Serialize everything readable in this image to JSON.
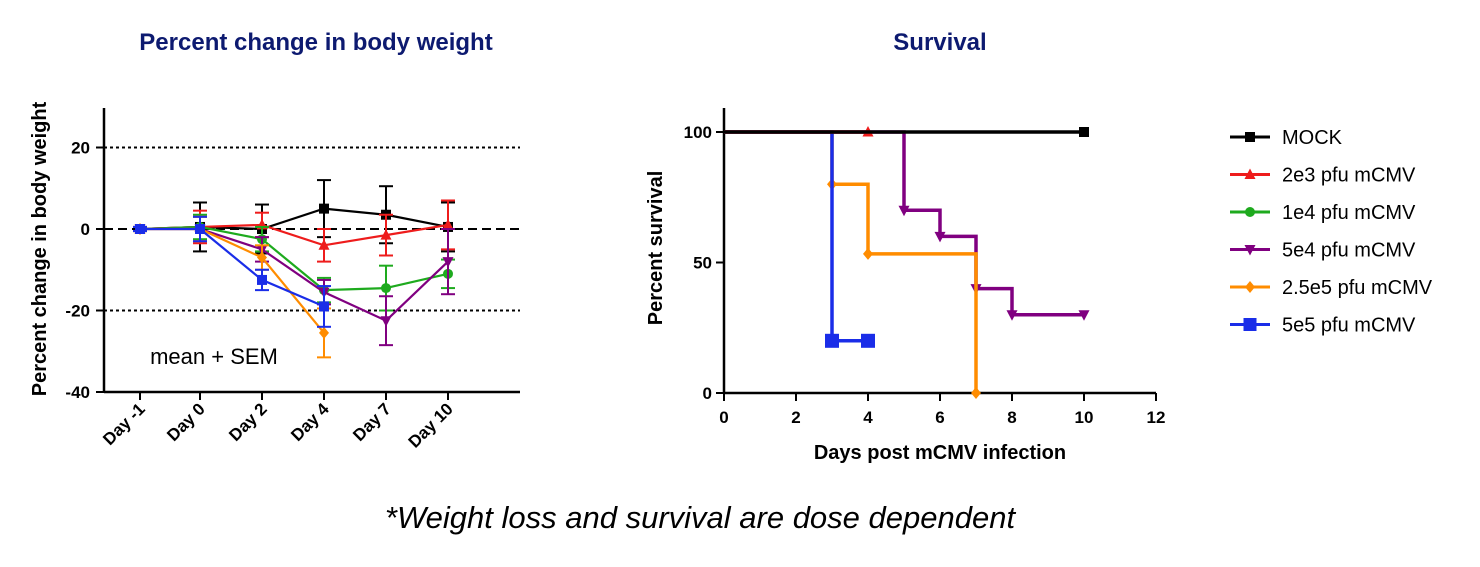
{
  "caption": "*Weight loss and survival are dose dependent",
  "colors": {
    "title": "#0d1a70",
    "MOCK": "#000000",
    "2e3 pfu mCMV": "#ee1c1c",
    "1e4 pfu mCMV": "#1eaa1e",
    "5e4 pfu mCMV": "#800080",
    "2.5e5 pfu mCMV": "#ff8c00",
    "5e5 pfu mCMV": "#1a2de8"
  },
  "legend": {
    "placement": "right",
    "items": [
      {
        "label": "MOCK",
        "marker": "square"
      },
      {
        "label": "2e3 pfu mCMV",
        "marker": "triangle-up"
      },
      {
        "label": "1e4 pfu mCMV",
        "marker": "circle"
      },
      {
        "label": "5e4 pfu mCMV",
        "marker": "triangle-down"
      },
      {
        "label": "2.5e5 pfu mCMV",
        "marker": "diamond"
      },
      {
        "label": "5e5 pfu mCMV",
        "marker": "square"
      }
    ]
  },
  "chart_data": [
    {
      "type": "line",
      "title": "Percent change in body weight",
      "xlabel": "",
      "ylabel": "Percent change in body weight",
      "categories": [
        "Day -1",
        "Day 0",
        "Day 2",
        "Day 4",
        "Day 7",
        "Day 10"
      ],
      "ylim": [
        -40,
        30
      ],
      "yticks": [
        -40,
        -20,
        0,
        20
      ],
      "reference_lines": [
        20,
        0,
        -20
      ],
      "annotation": "mean + SEM",
      "series": [
        {
          "name": "MOCK",
          "values": [
            0,
            0.5,
            0,
            5,
            3.5,
            0.5
          ],
          "err": [
            0.5,
            6,
            6,
            7,
            7,
            6
          ]
        },
        {
          "name": "2e3 pfu mCMV",
          "values": [
            0,
            0.5,
            1,
            -4,
            -1.5,
            1
          ],
          "err": [
            0.5,
            4,
            3,
            4,
            5,
            6
          ]
        },
        {
          "name": "1e4 pfu mCMV",
          "values": [
            0,
            0.5,
            -2.5,
            -15,
            -14.5,
            -11
          ],
          "err": [
            0.5,
            3,
            3,
            3,
            5.5,
            3.5
          ]
        },
        {
          "name": "5e4 pfu mCMV",
          "values": [
            0,
            0,
            -5,
            -15.5,
            -22.5,
            -8
          ],
          "err": [
            0.5,
            3,
            3,
            3,
            6,
            8
          ]
        },
        {
          "name": "2.5e5 pfu mCMV",
          "values": [
            0,
            0,
            -7,
            -25.5,
            null,
            null
          ],
          "err": [
            0.5,
            3,
            3,
            6,
            null,
            null
          ]
        },
        {
          "name": "5e5 pfu mCMV",
          "values": [
            0,
            0,
            -12.5,
            -19,
            null,
            null
          ],
          "err": [
            0.5,
            3,
            2.5,
            5,
            null,
            null
          ]
        }
      ]
    },
    {
      "type": "line",
      "step": true,
      "title": "Survival",
      "xlabel": "Days post mCMV infection",
      "ylabel": "Percent survival",
      "xlim": [
        0,
        12
      ],
      "ylim": [
        0,
        110
      ],
      "xticks": [
        0,
        2,
        4,
        6,
        8,
        10,
        12
      ],
      "yticks": [
        0,
        50,
        100
      ],
      "series": [
        {
          "name": "MOCK",
          "x": [
            0,
            10
          ],
          "y": [
            100,
            100
          ]
        },
        {
          "name": "2e3 pfu mCMV",
          "x": [
            4,
            4
          ],
          "y": [
            100,
            100
          ]
        },
        {
          "name": "1e4 pfu mCMV",
          "x": [],
          "y": []
        },
        {
          "name": "5e4 pfu mCMV",
          "x": [
            5,
            5,
            6,
            7,
            8,
            10
          ],
          "y": [
            100,
            70,
            60,
            40,
            30,
            30
          ]
        },
        {
          "name": "2.5e5 pfu mCMV",
          "x": [
            3,
            3,
            4,
            7
          ],
          "y": [
            100,
            80,
            53.3,
            0
          ]
        },
        {
          "name": "5e5 pfu mCMV",
          "x": [
            3,
            3,
            4
          ],
          "y": [
            100,
            20,
            20
          ]
        }
      ]
    }
  ]
}
